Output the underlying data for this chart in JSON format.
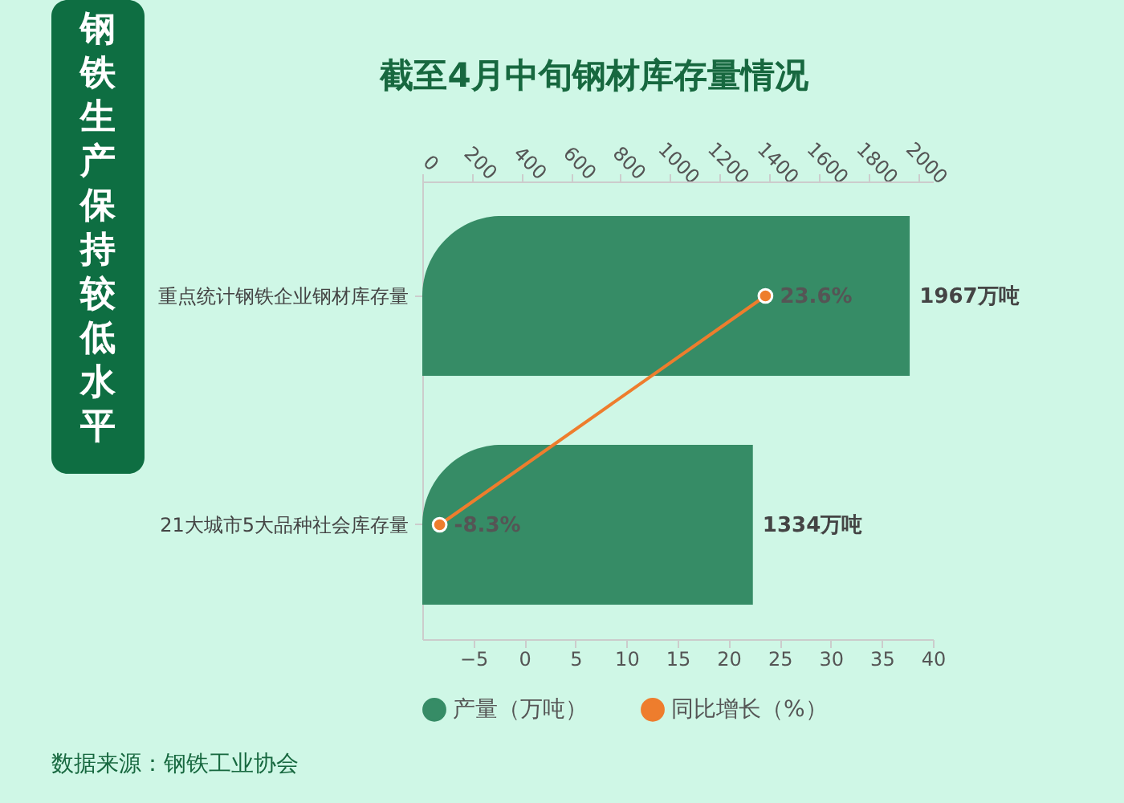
{
  "chart_data": {
    "type": "bar",
    "orientation": "horizontal",
    "title": "截至4月中旬钢材库存量情况",
    "subtitle": "钢铁生产保持较低水平",
    "categories": [
      "重点统计钢铁企业钢材库存量",
      "21大城市5大品种社会库存量"
    ],
    "xlim": [
      -10,
      40
    ],
    "xticks": [
      -5,
      0,
      5,
      10,
      15,
      20,
      25,
      30,
      35,
      40
    ],
    "x2lim": [
      0,
      2060
    ],
    "x2ticks": [
      0,
      200,
      400,
      600,
      800,
      1000,
      1200,
      1400,
      1600,
      1800,
      2000
    ],
    "series": [
      {
        "name": "产量（万吨）",
        "type": "bar",
        "axis": "x2",
        "color": "#368c66",
        "values": [
          1967,
          1334
        ],
        "value_labels": [
          "1967万吨",
          "1334万吨"
        ]
      },
      {
        "name": "同比增长（%）",
        "type": "line",
        "color": "#ee7d2d",
        "values": [
          23.6,
          -8.3
        ],
        "value_labels": [
          "23.6%",
          "-8.3%"
        ]
      }
    ],
    "marker": "circle",
    "legend": "bottom",
    "grid": false,
    "annotations": [
      "数据来源：钢铁工业协会"
    ]
  }
}
